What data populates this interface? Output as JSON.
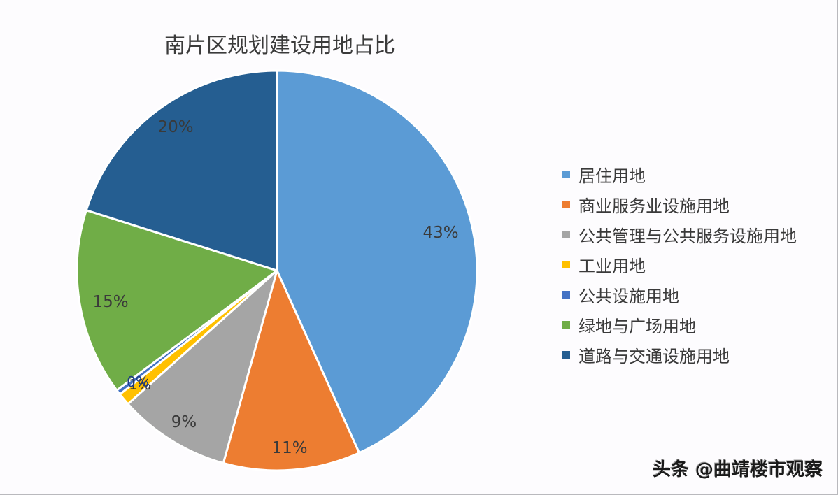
{
  "chart_data": {
    "type": "pie",
    "title": "南片区规划建设用地占比",
    "categories": [
      "居住用地",
      "商业服务业设施用地",
      "公共管理与公共服务设施用地",
      "工业用地",
      "公共设施用地",
      "绿地与广场用地",
      "道路与交通设施用地"
    ],
    "values": [
      43,
      11,
      9,
      1,
      0.4,
      15,
      20
    ],
    "labels": [
      "43%",
      "11%",
      "9%",
      "1%",
      "0%",
      "15%",
      "20%"
    ],
    "colors": [
      "#5b9bd5",
      "#ed7d31",
      "#a5a5a5",
      "#ffc000",
      "#4472c4",
      "#70ad47",
      "#255e91"
    ],
    "legend_position": "right",
    "start_angle_deg": 0,
    "direction": "clockwise"
  },
  "title": "南片区规划建设用地占比",
  "legend": [
    {
      "label": "居住用地",
      "color": "#5b9bd5"
    },
    {
      "label": "商业服务业设施用地",
      "color": "#ed7d31"
    },
    {
      "label": "公共管理与公共服务设施用地",
      "color": "#a5a5a5"
    },
    {
      "label": "工业用地",
      "color": "#ffc000"
    },
    {
      "label": "公共设施用地",
      "color": "#4472c4"
    },
    {
      "label": "绿地与广场用地",
      "color": "#70ad47"
    },
    {
      "label": "道路与交通设施用地",
      "color": "#255e91"
    }
  ],
  "slice_labels": {
    "residential": "43%",
    "commercial": "11%",
    "public_admin": "9%",
    "industrial": "1%",
    "utilities": "0%",
    "green": "15%",
    "roads": "20%"
  },
  "watermark": "头条 @曲靖楼市观察"
}
